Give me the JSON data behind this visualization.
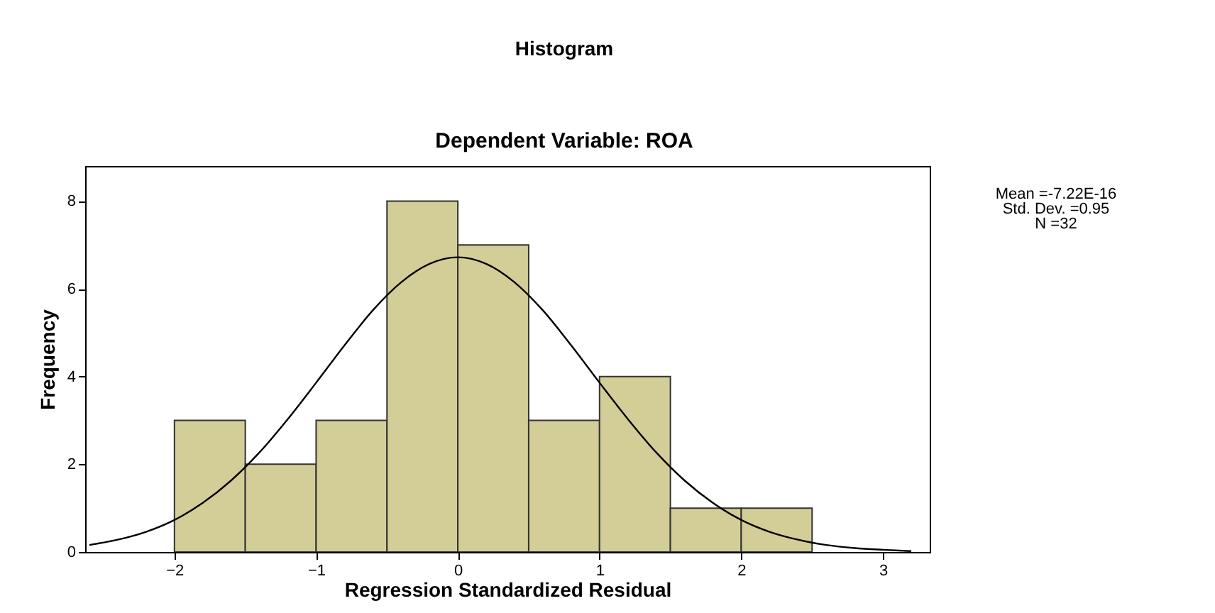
{
  "chart_data": {
    "type": "histogram",
    "title": "Histogram",
    "subtitle": "Dependent Variable: ROA",
    "xlabel": "Regression Standardized Residual",
    "ylabel": "Frequency",
    "bins": [
      -2,
      -1.5,
      -1,
      -0.5,
      0,
      0.5,
      1,
      1.5,
      2,
      2.5
    ],
    "series": [
      {
        "color": "#d3ce98",
        "values": [
          3,
          2,
          3,
          8,
          7,
          3,
          4,
          1,
          1
        ]
      },
      {
        "type": "line",
        "color": "#000000",
        "x": [
          -2.6,
          -2.4,
          -2.2,
          -2.0,
          -1.8,
          -1.6,
          -1.4,
          -1.2,
          -1.0,
          -0.8,
          -0.6,
          -0.4,
          -0.2,
          0,
          0.2,
          0.4,
          0.6,
          0.8,
          1.0,
          1.2,
          1.4,
          1.6,
          1.8,
          2.0,
          2.2,
          2.4,
          2.6,
          2.8,
          3.0,
          3.2
        ],
        "values": [
          0.16,
          0.28,
          0.46,
          0.73,
          1.12,
          1.63,
          2.27,
          3.03,
          3.86,
          4.71,
          5.51,
          6.15,
          6.57,
          6.72,
          6.57,
          6.15,
          5.51,
          4.71,
          3.86,
          3.03,
          2.27,
          1.63,
          1.12,
          0.73,
          0.46,
          0.28,
          0.16,
          0.09,
          0.05,
          0.02
        ]
      }
    ],
    "xlim": [
      -2.63,
      3.33
    ],
    "xticks": [
      -2,
      -1,
      0,
      1,
      2,
      3
    ],
    "ylim": [
      0,
      8.8
    ],
    "yticks": [
      0,
      2,
      4,
      6,
      8
    ],
    "annotations": [
      "Mean =-7.22E-16",
      "Std. Dev. =0.95",
      "N =32"
    ],
    "grid": false
  }
}
